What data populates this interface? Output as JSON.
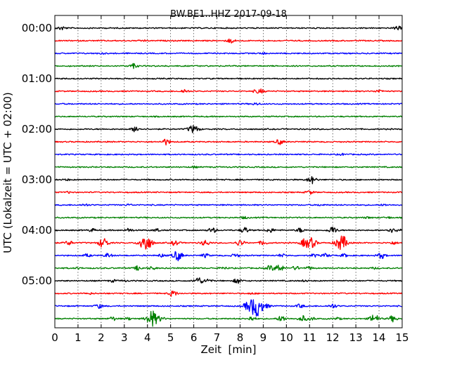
{
  "chart_data": {
    "type": "line",
    "title": "BW.BE1..HHZ 2017-09-18",
    "xlabel": "Zeit  [min]",
    "ylabel": "UTC (Lokalzeit = UTC + 02:00)",
    "xlim": [
      0,
      15
    ],
    "x_ticks": [
      "0",
      "1",
      "2",
      "3",
      "4",
      "5",
      "6",
      "7",
      "8",
      "9",
      "10",
      "11",
      "12",
      "13",
      "14",
      "15"
    ],
    "y_ticks": [
      "00:00",
      "01:00",
      "02:00",
      "03:00",
      "04:00",
      "05:00"
    ],
    "grid": "vertical dotted",
    "trace_interval_minutes": 15,
    "trace_colors": [
      "#000000",
      "#ff0000",
      "#0000ff",
      "#008000"
    ],
    "series": [
      {
        "start": "00:00",
        "events": [
          [
            0.3,
            0.5
          ],
          [
            14.8,
            0.5
          ]
        ]
      },
      {
        "start": "00:15",
        "events": [
          [
            7.6,
            0.6
          ],
          [
            3.8,
            0.2
          ]
        ]
      },
      {
        "start": "00:30",
        "events": [
          [
            2.0,
            0.2
          ],
          [
            9.0,
            0.2
          ]
        ]
      },
      {
        "start": "00:45",
        "events": [
          [
            3.4,
            0.6
          ]
        ]
      },
      {
        "start": "01:00",
        "events": []
      },
      {
        "start": "01:15",
        "events": [
          [
            5.6,
            0.5
          ],
          [
            8.9,
            0.5
          ],
          [
            14.0,
            0.4
          ],
          [
            8.7,
            0.3
          ]
        ]
      },
      {
        "start": "01:30",
        "events": [
          [
            8.7,
            0.3
          ]
        ]
      },
      {
        "start": "01:45",
        "events": []
      },
      {
        "start": "02:00",
        "events": [
          [
            3.5,
            0.8
          ],
          [
            5.9,
            0.8
          ],
          [
            6.1,
            0.6
          ]
        ]
      },
      {
        "start": "02:15",
        "events": [
          [
            4.8,
            0.8
          ],
          [
            9.7,
            0.7
          ]
        ]
      },
      {
        "start": "02:30",
        "events": [
          [
            12.4,
            0.2
          ]
        ]
      },
      {
        "start": "02:45",
        "events": [
          [
            6.0,
            0.2
          ]
        ]
      },
      {
        "start": "03:00",
        "events": [
          [
            11.1,
            1.0
          ],
          [
            0.5,
            0.2
          ]
        ]
      },
      {
        "start": "03:15",
        "events": [
          [
            11.0,
            0.5
          ],
          [
            0.6,
            0.2
          ]
        ]
      },
      {
        "start": "03:30",
        "events": [
          [
            1.3,
            0.3
          ],
          [
            3.2,
            0.2
          ],
          [
            11.5,
            0.2
          ],
          [
            14.2,
            0.2
          ]
        ]
      },
      {
        "start": "03:45",
        "events": [
          [
            8.2,
            0.3
          ],
          [
            13.5,
            0.2
          ],
          [
            14.4,
            0.2
          ]
        ]
      },
      {
        "start": "04:00",
        "events": [
          [
            3.2,
            0.5
          ],
          [
            6.8,
            0.7
          ],
          [
            8.2,
            0.8
          ],
          [
            9.3,
            0.6
          ],
          [
            10.6,
            0.6
          ],
          [
            12.0,
            1.0
          ],
          [
            14.5,
            0.6
          ],
          [
            1.6,
            0.4
          ],
          [
            4.4,
            0.4
          ],
          [
            14.9,
            0.6
          ]
        ]
      },
      {
        "start": "04:15",
        "events": [
          [
            2.1,
            1.4
          ],
          [
            3.8,
            1.4
          ],
          [
            4.0,
            1.6
          ],
          [
            5.2,
            0.7
          ],
          [
            6.5,
            0.8
          ],
          [
            8.0,
            0.8
          ],
          [
            9.0,
            0.6
          ],
          [
            10.8,
            1.1
          ],
          [
            11.1,
            1.3
          ],
          [
            12.3,
            1.6
          ],
          [
            12.5,
            1.0
          ],
          [
            0.6,
            0.6
          ],
          [
            14.6,
            0.4
          ]
        ]
      },
      {
        "start": "04:30",
        "events": [
          [
            1.4,
            0.4
          ],
          [
            2.3,
            0.6
          ],
          [
            4.6,
            0.4
          ],
          [
            5.3,
            1.4
          ],
          [
            6.5,
            0.5
          ],
          [
            7.8,
            0.5
          ],
          [
            9.8,
            0.4
          ],
          [
            11.2,
            0.4
          ],
          [
            11.7,
            0.5
          ],
          [
            14.1,
            0.8
          ],
          [
            12.5,
            0.4
          ]
        ]
      },
      {
        "start": "04:45",
        "events": [
          [
            3.6,
            0.6
          ],
          [
            4.2,
            0.4
          ],
          [
            7.3,
            0.3
          ],
          [
            9.3,
            0.7
          ],
          [
            9.7,
            1.0
          ],
          [
            10.4,
            0.5
          ],
          [
            11.0,
            0.4
          ],
          [
            1.0,
            0.2
          ],
          [
            13.8,
            0.2
          ]
        ]
      },
      {
        "start": "05:00",
        "events": [
          [
            6.2,
            1.0
          ],
          [
            6.6,
            0.5
          ],
          [
            7.9,
            0.7
          ],
          [
            2.5,
            0.3
          ],
          [
            3.0,
            0.2
          ],
          [
            10.8,
            0.2
          ]
        ]
      },
      {
        "start": "05:15",
        "events": [
          [
            5.1,
            0.8
          ],
          [
            1.5,
            0.2
          ],
          [
            8.5,
            0.2
          ]
        ]
      },
      {
        "start": "05:30",
        "events": [
          [
            8.7,
            3.0
          ],
          [
            8.3,
            0.8
          ],
          [
            1.9,
            0.6
          ],
          [
            10.6,
            0.5
          ],
          [
            12.0,
            0.6
          ],
          [
            9.2,
            0.3
          ]
        ]
      },
      {
        "start": "05:45",
        "events": [
          [
            4.2,
            2.2
          ],
          [
            2.5,
            0.5
          ],
          [
            3.2,
            0.3
          ],
          [
            4.6,
            0.4
          ],
          [
            8.5,
            0.6
          ],
          [
            9.8,
            0.8
          ],
          [
            10.7,
            0.8
          ],
          [
            11.1,
            0.4
          ],
          [
            13.8,
            1.2
          ],
          [
            14.6,
            0.8
          ],
          [
            12.2,
            0.3
          ]
        ]
      }
    ]
  }
}
